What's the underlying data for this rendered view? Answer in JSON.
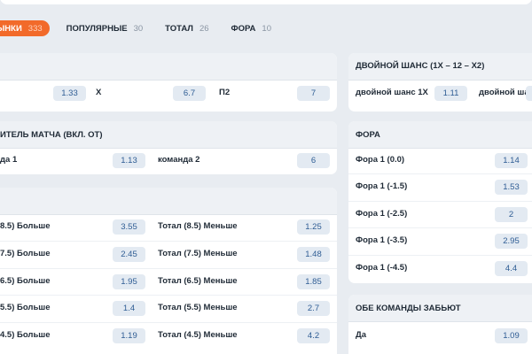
{
  "tabs": [
    {
      "label": "ЫНКИ",
      "count": 333
    },
    {
      "label": "ПОПУЛЯРНЫЕ",
      "count": 30
    },
    {
      "label": "ТОТАЛ",
      "count": 26
    },
    {
      "label": "ФОРА",
      "count": 10
    }
  ],
  "left_panels": [
    {
      "rows": [
        {
          "cells": [
            {
              "odds": 1.33
            },
            {
              "label": "X",
              "odds": 6.7
            },
            {
              "label": "П2",
              "odds": 7
            }
          ]
        }
      ]
    },
    {
      "title": "ИТЕЛЬ МАТЧА (ВКЛ. ОТ)",
      "rows": [
        {
          "cells": [
            {
              "label": "да 1",
              "odds": 1.13
            },
            {
              "label": "команда 2",
              "odds": 6
            }
          ]
        }
      ]
    },
    {
      "rows": [
        {
          "cells": [
            {
              "label": "8.5) Больше",
              "odds": 3.55
            },
            {
              "label": "Тотал (8.5) Меньше",
              "odds": 1.25
            }
          ]
        },
        {
          "cells": [
            {
              "label": "7.5) Больше",
              "odds": 2.45
            },
            {
              "label": "Тотал (7.5) Меньше",
              "odds": 1.48
            }
          ]
        },
        {
          "cells": [
            {
              "label": "6.5) Больше",
              "odds": 1.95
            },
            {
              "label": "Тотал (6.5) Меньше",
              "odds": 1.85
            }
          ]
        },
        {
          "cells": [
            {
              "label": "5.5) Больше",
              "odds": 1.4
            },
            {
              "label": "Тотал (5.5) Меньше",
              "odds": 2.7
            }
          ]
        },
        {
          "cells": [
            {
              "label": "4.5) Больше",
              "odds": 1.19
            },
            {
              "label": "Тотал (4.5) Меньше",
              "odds": 4.2
            }
          ]
        }
      ]
    }
  ],
  "right_panels": [
    {
      "title": "ДВОЙНОЙ ШАНС (1X – 12 – X2)",
      "rows": [
        {
          "cells": [
            {
              "label": "двойной шанс 1X",
              "odds": 1.11
            },
            {
              "label": "двойной шанс"
            }
          ]
        }
      ]
    },
    {
      "title": "ФОРА",
      "rows": [
        {
          "cells": [
            {
              "label": "Фора 1 (0.0)",
              "odds": 1.14
            }
          ]
        },
        {
          "cells": [
            {
              "label": "Фора 1 (-1.5)",
              "odds": 1.53
            }
          ]
        },
        {
          "cells": [
            {
              "label": "Фора 1 (-2.5)",
              "odds": 2
            }
          ]
        },
        {
          "cells": [
            {
              "label": "Фора 1 (-3.5)",
              "odds": 2.95
            }
          ]
        },
        {
          "cells": [
            {
              "label": "Фора 1 (-4.5)",
              "odds": 4.4
            }
          ]
        }
      ]
    },
    {
      "title": "ОБЕ КОМАНДЫ ЗАБЬЮТ",
      "rows": [
        {
          "cells": [
            {
              "label": "Да",
              "odds": 1.09
            }
          ]
        }
      ]
    }
  ]
}
